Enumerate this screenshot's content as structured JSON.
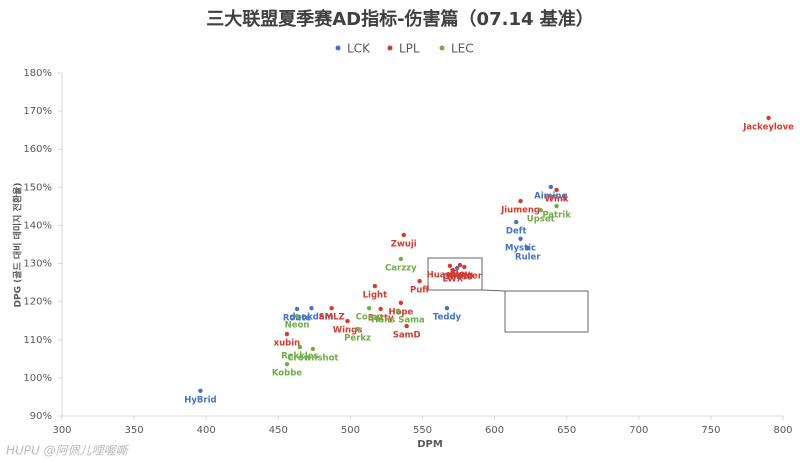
{
  "chart_data": {
    "type": "scatter",
    "title": "三大联盟夏季赛AD指标-伤害篇（07.14 基准）",
    "x_label": "DPM",
    "y_label": "DPG (골드 대비 데미지 전환율)",
    "watermark": "HUPU @阿佩儿哩喔嘶",
    "xlim": [
      300,
      800
    ],
    "xticks": [
      300,
      350,
      400,
      450,
      500,
      550,
      600,
      650,
      700,
      750,
      800
    ],
    "ylim": [
      90,
      180
    ],
    "yticks": [
      {
        "value": 90,
        "label": "90%"
      },
      {
        "value": 100,
        "label": "100%"
      },
      {
        "value": 110,
        "label": "110%"
      },
      {
        "value": 120,
        "label": "120%"
      },
      {
        "value": 130,
        "label": "130%"
      },
      {
        "value": 140,
        "label": "140%"
      },
      {
        "value": 150,
        "label": "150%"
      },
      {
        "value": 160,
        "label": "160%"
      },
      {
        "value": 170,
        "label": "170%"
      },
      {
        "value": 180,
        "label": "180%"
      }
    ],
    "grid": false,
    "legend": "top",
    "series": [
      {
        "name": "LCK",
        "color": "#4472c4",
        "point_labels": [
          "HyBrid",
          "Route",
          "deokdam",
          "Teddy",
          "Deft",
          "Mystic",
          "Ruler",
          "Aiming",
          "Ghost"
        ],
        "x": [
          396,
          463,
          473,
          567,
          615,
          618,
          623,
          639,
          574
        ],
        "values": [
          96.6,
          118.1,
          118.3,
          118.3,
          140.9,
          136.5,
          134.1,
          150.1,
          128.8
        ]
      },
      {
        "name": "LPL",
        "color": "#d63a2f",
        "point_labels": [
          "Jackeylove",
          "Wink",
          "Jiumeng",
          "Zwuji",
          "Light",
          "Hope",
          "Puff",
          "SMLZ",
          "Wings",
          "Betty",
          "SamD",
          "xubin",
          "iBoy",
          "Huanfeng",
          "Kramer",
          "LWX"
        ],
        "x": [
          790,
          643,
          618,
          537,
          517,
          535,
          548,
          487,
          498,
          521,
          539,
          456,
          576,
          569,
          579,
          571
        ],
        "values": [
          168.2,
          149.3,
          146.4,
          137.5,
          124.1,
          119.7,
          125.4,
          118.3,
          114.9,
          118.1,
          113.6,
          111.5,
          129.6,
          129.4,
          129.1,
          128.3
        ]
      },
      {
        "name": "LEC",
        "color": "#70ad47",
        "point_labels": [
          "Upset",
          "Patrik",
          "Carzzy",
          "Comp",
          "Hans Sama",
          "Neon",
          "Perkz",
          "Rekkles",
          "Crownshot",
          "Kobbe"
        ],
        "x": [
          632,
          643,
          535,
          513,
          533,
          463,
          505,
          465,
          474,
          456
        ],
        "values": [
          144.0,
          145.1,
          131.2,
          118.3,
          117.6,
          116.2,
          112.8,
          108.1,
          107.6,
          103.6
        ]
      }
    ]
  }
}
